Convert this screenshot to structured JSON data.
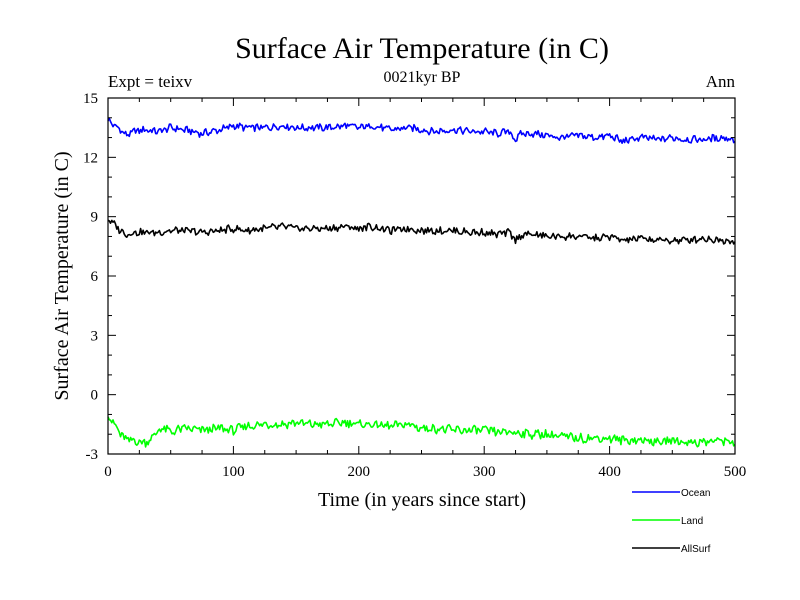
{
  "chart_data": {
    "type": "line",
    "title": "Surface Air Temperature (in C)",
    "subtitle": "0021kyr BP",
    "left_note": "Expt = teixv",
    "right_note": "Ann",
    "xlabel": "Time (in years since start)",
    "ylabel": "Surface Air Temperature (in C)",
    "xlim": [
      0,
      500
    ],
    "ylim": [
      -3,
      15
    ],
    "xticks": [
      0,
      100,
      200,
      300,
      400,
      500
    ],
    "yticks": [
      -3,
      0,
      3,
      6,
      9,
      12,
      15
    ],
    "grid": false,
    "legend_position": "bottom-right, outside plot",
    "series": [
      {
        "name": "Ocean",
        "color": "#0000ff",
        "x": [
          0,
          5,
          10,
          15,
          20,
          30,
          40,
          50,
          60,
          75,
          90,
          100,
          110,
          125,
          140,
          150,
          160,
          175,
          190,
          200,
          210,
          225,
          240,
          250,
          260,
          275,
          290,
          300,
          310,
          320,
          325,
          330,
          340,
          350,
          360,
          375,
          390,
          400,
          410,
          425,
          440,
          450,
          460,
          475,
          490,
          500
        ],
        "y": [
          13.9,
          13.6,
          13.4,
          13.1,
          13.3,
          13.4,
          13.3,
          13.5,
          13.4,
          13.2,
          13.4,
          13.6,
          13.5,
          13.5,
          13.6,
          13.5,
          13.5,
          13.5,
          13.6,
          13.5,
          13.6,
          13.4,
          13.5,
          13.4,
          13.3,
          13.4,
          13.3,
          13.3,
          13.2,
          13.3,
          12.9,
          13.2,
          13.2,
          13.1,
          13.0,
          13.1,
          13.0,
          13.1,
          12.8,
          13.0,
          12.9,
          13.0,
          12.9,
          12.9,
          13.0,
          12.9
        ]
      },
      {
        "name": "Land",
        "color": "#00ff00",
        "x": [
          0,
          5,
          10,
          15,
          20,
          25,
          30,
          35,
          40,
          45,
          50,
          60,
          75,
          90,
          100,
          110,
          125,
          140,
          150,
          160,
          175,
          190,
          200,
          210,
          225,
          240,
          250,
          260,
          275,
          290,
          300,
          310,
          325,
          340,
          350,
          360,
          375,
          390,
          400,
          410,
          425,
          440,
          450,
          460,
          475,
          490,
          500
        ],
        "y": [
          -1.0,
          -1.5,
          -2.0,
          -2.3,
          -2.3,
          -2.4,
          -2.4,
          -2.2,
          -1.8,
          -1.7,
          -1.9,
          -1.7,
          -1.8,
          -1.7,
          -1.8,
          -1.6,
          -1.5,
          -1.5,
          -1.4,
          -1.5,
          -1.5,
          -1.4,
          -1.5,
          -1.5,
          -1.6,
          -1.5,
          -1.7,
          -1.7,
          -1.8,
          -1.8,
          -1.8,
          -1.9,
          -1.9,
          -2.0,
          -2.0,
          -2.1,
          -2.2,
          -2.2,
          -2.2,
          -2.3,
          -2.3,
          -2.4,
          -2.3,
          -2.4,
          -2.4,
          -2.3,
          -2.4
        ]
      },
      {
        "name": "AllSurf",
        "color": "#000000",
        "x": [
          0,
          5,
          10,
          15,
          20,
          30,
          40,
          50,
          60,
          75,
          90,
          100,
          110,
          125,
          140,
          150,
          160,
          175,
          190,
          200,
          210,
          225,
          240,
          250,
          260,
          275,
          290,
          300,
          310,
          320,
          325,
          330,
          340,
          350,
          360,
          375,
          390,
          400,
          410,
          425,
          440,
          450,
          460,
          475,
          490,
          500
        ],
        "y": [
          8.9,
          8.6,
          8.3,
          8.1,
          8.2,
          8.2,
          8.2,
          8.3,
          8.3,
          8.2,
          8.3,
          8.4,
          8.3,
          8.4,
          8.5,
          8.4,
          8.4,
          8.4,
          8.5,
          8.4,
          8.5,
          8.3,
          8.4,
          8.3,
          8.3,
          8.3,
          8.2,
          8.2,
          8.1,
          8.2,
          7.8,
          8.1,
          8.1,
          8.0,
          8.0,
          8.0,
          7.9,
          8.0,
          7.8,
          7.9,
          7.8,
          7.8,
          7.8,
          7.9,
          7.8,
          7.8
        ]
      }
    ]
  }
}
